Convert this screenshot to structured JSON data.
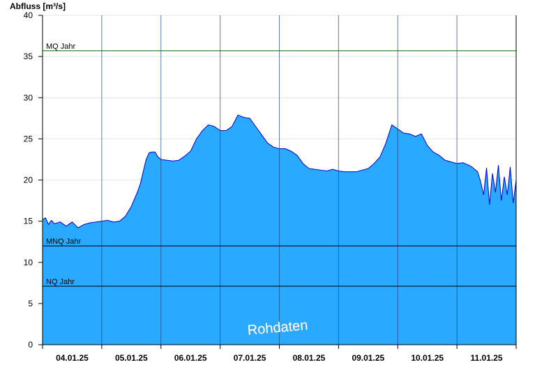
{
  "chart_data": {
    "type": "area",
    "ylabel": "Abfluss [m³/s]",
    "ylim": [
      0,
      40
    ],
    "yticks": [
      0,
      5,
      10,
      15,
      20,
      25,
      30,
      35,
      40
    ],
    "xlim": [
      0,
      8
    ],
    "xtick_labels": [
      "04.01.25",
      "05.01.25",
      "06.01.25",
      "07.01.25",
      "08.01.25",
      "09.01.25",
      "10.01.25",
      "11.01.25"
    ],
    "grid": true,
    "fill_color": "#29a9ff",
    "line_color": "#0000cc",
    "watermark": "Rohdaten",
    "reference_lines": [
      {
        "label": "MQ Jahr",
        "value": 35.7,
        "color": "#006400"
      },
      {
        "label": "MNQ Jahr",
        "value": 12.0,
        "color": "#000000"
      },
      {
        "label": "NQ Jahr",
        "value": 7.1,
        "color": "#000000"
      }
    ],
    "series": [
      {
        "x": [
          0.0,
          0.05,
          0.1,
          0.15,
          0.2,
          0.3,
          0.4,
          0.5,
          0.6,
          0.7,
          0.8,
          0.9,
          1.0,
          1.1,
          1.2,
          1.3,
          1.4,
          1.5,
          1.6,
          1.65,
          1.7,
          1.75,
          1.8,
          1.85,
          1.9,
          1.95,
          2.0,
          2.1,
          2.2,
          2.3,
          2.4,
          2.5,
          2.6,
          2.7,
          2.8,
          2.9,
          3.0,
          3.1,
          3.2,
          3.3,
          3.4,
          3.5,
          3.6,
          3.7,
          3.8,
          3.9,
          4.0,
          4.1,
          4.2,
          4.3,
          4.4,
          4.5,
          4.6,
          4.7,
          4.8,
          4.9,
          5.0,
          5.1,
          5.2,
          5.3,
          5.4,
          5.5,
          5.6,
          5.7,
          5.8,
          5.9,
          6.0,
          6.1,
          6.2,
          6.3,
          6.4,
          6.5,
          6.6,
          6.7,
          6.8,
          6.9,
          7.0,
          7.1,
          7.2,
          7.25,
          7.3,
          7.35,
          7.4,
          7.45,
          7.5,
          7.55,
          7.6,
          7.65,
          7.7,
          7.75,
          7.8,
          7.85,
          7.9,
          7.95,
          8.0
        ],
        "y": [
          15.2,
          15.4,
          14.6,
          15.1,
          14.7,
          14.9,
          14.4,
          14.9,
          14.2,
          14.6,
          14.8,
          14.9,
          15.0,
          15.1,
          14.9,
          15.0,
          15.6,
          16.8,
          18.5,
          19.5,
          21.0,
          22.5,
          23.3,
          23.4,
          23.4,
          22.8,
          22.5,
          22.4,
          22.3,
          22.4,
          22.9,
          23.5,
          25.0,
          26.0,
          26.7,
          26.5,
          26.0,
          26.0,
          26.5,
          27.9,
          27.6,
          27.5,
          26.5,
          25.5,
          24.5,
          24.0,
          23.8,
          23.8,
          23.5,
          23.0,
          22.0,
          21.4,
          21.3,
          21.2,
          21.1,
          21.3,
          21.1,
          21.0,
          21.0,
          21.0,
          21.2,
          21.4,
          22.0,
          22.8,
          24.5,
          26.7,
          26.2,
          25.7,
          25.6,
          25.3,
          25.6,
          24.2,
          23.4,
          23.0,
          22.4,
          22.2,
          22.0,
          22.1,
          21.8,
          21.6,
          21.3,
          21.0,
          19.8,
          18.2,
          21.5,
          17.0,
          20.8,
          18.5,
          21.8,
          17.5,
          20.4,
          18.2,
          21.6,
          17.2,
          20.0
        ]
      }
    ]
  }
}
